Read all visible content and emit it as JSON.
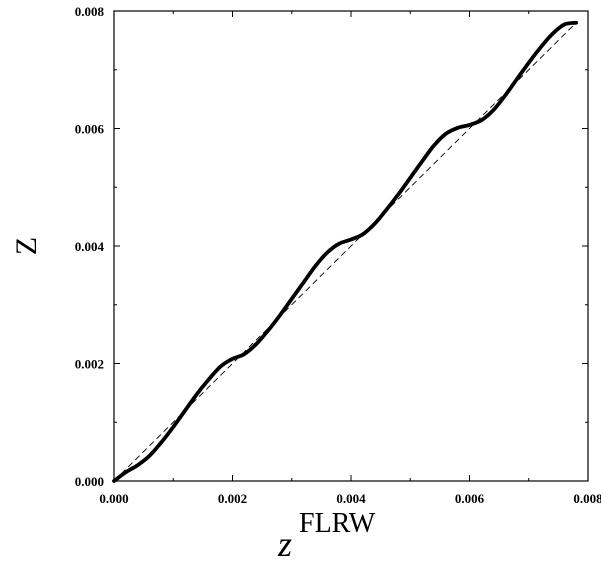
{
  "chart_data": {
    "type": "line",
    "title": "",
    "xlabel": "z",
    "xlabel_superscript": "FLRW",
    "ylabel": "Z",
    "xlim": [
      0.0,
      0.008
    ],
    "ylim": [
      0.0,
      0.008
    ],
    "x_ticks": [
      "0.000",
      "0.002",
      "0.004",
      "0.006",
      "0.008"
    ],
    "y_ticks": [
      "0.000",
      "0.002",
      "0.004",
      "0.006",
      "0.008"
    ],
    "grid": false,
    "legend": "none",
    "series": [
      {
        "style": "solid",
        "color": "#000000",
        "x": [
          0.0,
          0.0002,
          0.0004,
          0.0006,
          0.0008,
          0.001,
          0.0012,
          0.0014,
          0.0016,
          0.0018,
          0.002,
          0.0022,
          0.0024,
          0.0026,
          0.0028,
          0.003,
          0.0032,
          0.0034,
          0.0036,
          0.0038,
          0.004,
          0.0042,
          0.0044,
          0.0046,
          0.0048,
          0.005,
          0.0052,
          0.0054,
          0.0056,
          0.0058,
          0.006,
          0.0062,
          0.0064,
          0.0066,
          0.0068,
          0.007,
          0.0072,
          0.0074,
          0.0076,
          0.0078
        ],
        "y": [
          0.0,
          0.00015,
          0.00027,
          0.00043,
          0.00066,
          0.00092,
          0.0012,
          0.00148,
          0.00173,
          0.00195,
          0.00208,
          0.00216,
          0.00233,
          0.00256,
          0.00282,
          0.0031,
          0.00338,
          0.00366,
          0.00389,
          0.00404,
          0.00411,
          0.0042,
          0.00438,
          0.00462,
          0.00488,
          0.00516,
          0.00544,
          0.00571,
          0.00591,
          0.00601,
          0.00606,
          0.00614,
          0.00631,
          0.00656,
          0.00684,
          0.00712,
          0.00738,
          0.00761,
          0.00777,
          0.0078
        ]
      },
      {
        "style": "dashed",
        "color": "#000000",
        "x": [
          0.0,
          0.0078
        ],
        "y": [
          0.0,
          0.0078
        ]
      }
    ]
  }
}
